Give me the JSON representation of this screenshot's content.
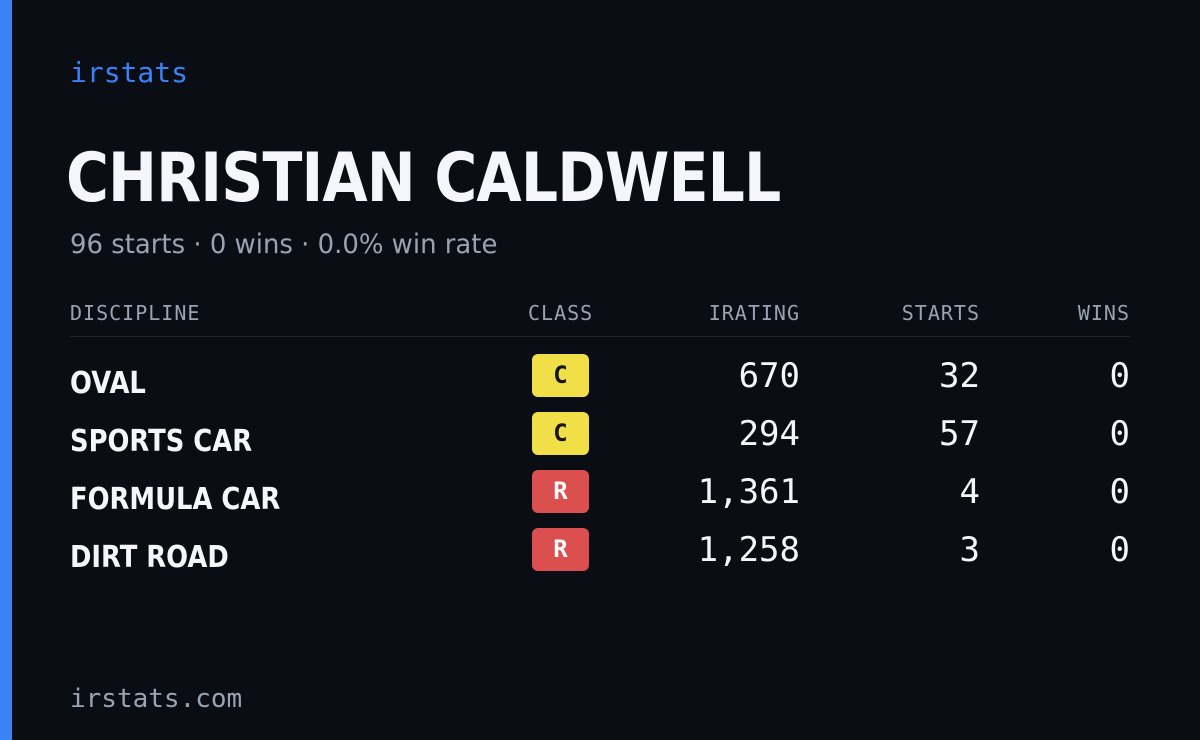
{
  "brand": "irstats",
  "player": {
    "name": "CHRISTIAN CALDWELL",
    "summary": "96 starts · 0 wins · 0.0% win rate"
  },
  "table": {
    "headers": {
      "discipline": "DISCIPLINE",
      "class": "CLASS",
      "irating": "IRATING",
      "starts": "STARTS",
      "wins": "WINS"
    },
    "rows": [
      {
        "discipline": "OVAL",
        "class": "C",
        "irating": "670",
        "starts": "32",
        "wins": "0"
      },
      {
        "discipline": "SPORTS CAR",
        "class": "C",
        "irating": "294",
        "starts": "57",
        "wins": "0"
      },
      {
        "discipline": "FORMULA CAR",
        "class": "R",
        "irating": "1,361",
        "starts": "4",
        "wins": "0"
      },
      {
        "discipline": "DIRT ROAD",
        "class": "R",
        "irating": "1,258",
        "starts": "3",
        "wins": "0"
      }
    ]
  },
  "footer": "irstats.com",
  "colors": {
    "accent": "#3b82f6",
    "background": "#0b0d14",
    "class_c": "#f0df46",
    "class_r": "#dc4f4f"
  }
}
